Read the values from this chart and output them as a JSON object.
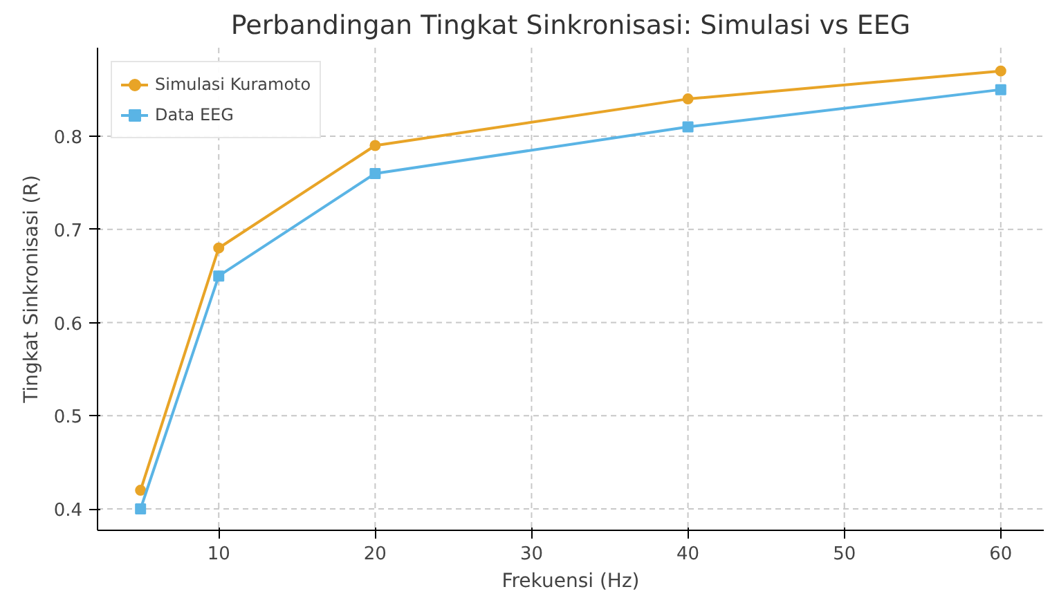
{
  "chart_data": {
    "type": "line",
    "title": "Perbandingan Tingkat Sinkronisasi: Simulasi vs EEG",
    "xlabel": "Frekuensi (Hz)",
    "ylabel": "Tingkat Sinkronisasi (R)",
    "x": [
      5,
      10,
      20,
      40,
      60
    ],
    "series": [
      {
        "name": "Simulasi Kuramoto",
        "color": "#e8a427",
        "marker": "circle",
        "values": [
          0.42,
          0.68,
          0.79,
          0.84,
          0.87
        ]
      },
      {
        "name": "Data EEG",
        "color": "#5ab4e5",
        "marker": "square",
        "values": [
          0.4,
          0.65,
          0.76,
          0.81,
          0.85
        ]
      }
    ],
    "xlim": [
      2.25,
      62.75
    ],
    "ylim": [
      0.377,
      0.895
    ],
    "xticks": [
      10,
      20,
      30,
      40,
      50,
      60
    ],
    "yticks": [
      0.4,
      0.5,
      0.6,
      0.7,
      0.8
    ],
    "grid": true,
    "legend": "top left",
    "line_style": "solid"
  }
}
